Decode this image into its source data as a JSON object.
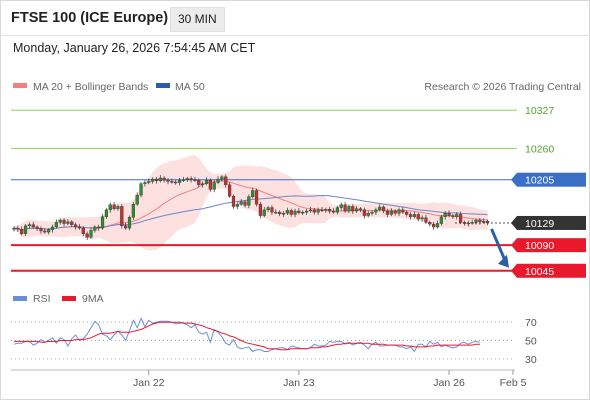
{
  "header": {
    "title": "FTSE 100 (ICE Europe)",
    "timeframe": "30 MIN",
    "timestamp": "Monday, January 26, 2026 7:54:45 AM CET"
  },
  "legend": {
    "ma20_label": "MA 20 + Bollinger Bands",
    "ma50_label": "MA 50",
    "credit": "Research © 2026 Trading Central"
  },
  "colors": {
    "ma20": "#f08080",
    "bands_fill": "#fde0e0",
    "ma50": "#6f86c8",
    "support": "#e8192c",
    "pivot_label": "#e8192c",
    "resistance_green": "#8fce5a",
    "resistance_blue": "#3a6fc6",
    "last_price_label": "#333333",
    "candle_up": "#2f8f2f",
    "candle_down": "#c43030",
    "rsi": "#6a8fd8",
    "rsi_ma": "#e8192c",
    "arrow": "#2b5ea7"
  },
  "chart_data": [
    {
      "type": "candlestick",
      "title": "",
      "ylim": [
        10020,
        10345
      ],
      "x_ticks": [
        "Jan 22",
        "Jan 23",
        "Jan 26",
        "Feb 5"
      ],
      "levels": [
        {
          "value": 10327,
          "label": "10327",
          "kind": "resistance"
        },
        {
          "value": 10260,
          "label": "10260",
          "kind": "resistance"
        },
        {
          "value": 10205,
          "label": "10205",
          "kind": "resistance"
        },
        {
          "value": 10129,
          "label": "10129",
          "kind": "last_price"
        },
        {
          "value": 10090,
          "label": "10090",
          "kind": "pivot"
        },
        {
          "value": 10045,
          "label": "10045",
          "kind": "support"
        }
      ],
      "close": [
        10120,
        10118,
        10110,
        10124,
        10126,
        10122,
        10119,
        10115,
        10113,
        10117,
        10122,
        10130,
        10134,
        10128,
        10131,
        10126,
        10122,
        10120,
        10110,
        10104,
        10116,
        10122,
        10120,
        10140,
        10152,
        10161,
        10154,
        10158,
        10124,
        10120,
        10139,
        10162,
        10178,
        10198,
        10200,
        10202,
        10206,
        10203,
        10208,
        10204,
        10202,
        10201,
        10200,
        10204,
        10205,
        10207,
        10205,
        10204,
        10196,
        10198,
        10204,
        10188,
        10200,
        10206,
        10210,
        10196,
        10176,
        10158,
        10162,
        10166,
        10160,
        10175,
        10186,
        10162,
        10142,
        10152,
        10156,
        10148,
        10148,
        10145,
        10146,
        10151,
        10144,
        10150,
        10147,
        10148,
        10150,
        10152,
        10148,
        10152,
        10151,
        10153,
        10150,
        10148,
        10156,
        10161,
        10150,
        10158,
        10150,
        10154,
        10152,
        10142,
        10146,
        10148,
        10152,
        10157,
        10150,
        10144,
        10150,
        10146,
        10152,
        10148,
        10144,
        10140,
        10144,
        10136,
        10138,
        10130,
        10127,
        10122,
        10128,
        10140,
        10146,
        10142,
        10140,
        10144,
        10130,
        10128,
        10129,
        10130,
        10134,
        10131,
        10132,
        10129
      ]
    },
    {
      "type": "line",
      "title": "",
      "ylim": [
        20,
        80
      ],
      "y_ticks": [
        "70",
        "50",
        "30"
      ],
      "series": [
        {
          "name": "RSI",
          "values": [
            46,
            47,
            47,
            49,
            49,
            45,
            47,
            51,
            48,
            50,
            53,
            47,
            53,
            51,
            44,
            52,
            56,
            50,
            52,
            57,
            64,
            71,
            67,
            57,
            55,
            51,
            56,
            60,
            56,
            50,
            61,
            72,
            64,
            74,
            65,
            72,
            69,
            70,
            71,
            71,
            71,
            70,
            68,
            69,
            69,
            67,
            64,
            67,
            59,
            57,
            59,
            48,
            62,
            59,
            54,
            47,
            45,
            51,
            43,
            41,
            42,
            43,
            38,
            40,
            40,
            38,
            38,
            40,
            41,
            42,
            42,
            40,
            44,
            43,
            42,
            41,
            41,
            42,
            46,
            44,
            44,
            45,
            49,
            48,
            49,
            49,
            46,
            48,
            45,
            47,
            48,
            45,
            41,
            46,
            48,
            44,
            44,
            45,
            45,
            45,
            43,
            43,
            41,
            43,
            38,
            46,
            46,
            43,
            49,
            46,
            48,
            43,
            45,
            43,
            42,
            43,
            47,
            48,
            46,
            48,
            49,
            48
          ]
        },
        {
          "name": "9MA",
          "values": [
            49,
            49,
            49,
            49,
            49,
            49,
            49,
            48,
            48,
            49,
            49,
            49,
            50,
            50,
            50,
            50,
            51,
            51,
            51,
            52,
            53,
            55,
            57,
            58,
            58,
            58,
            59,
            60,
            59,
            59,
            59,
            60,
            61,
            62,
            64,
            66,
            68,
            69,
            70,
            70,
            70,
            70,
            70,
            70,
            69,
            69,
            69,
            68,
            67,
            66,
            64,
            63,
            61,
            60,
            58,
            57,
            55,
            54,
            52,
            50,
            48,
            47,
            46,
            45,
            44,
            43,
            41,
            41,
            41,
            40,
            40,
            40,
            41,
            41,
            41,
            41,
            41,
            42,
            42,
            42,
            43,
            43,
            44,
            45,
            46,
            46,
            47,
            47,
            47,
            47,
            47,
            47,
            47,
            46,
            46,
            46,
            46,
            45,
            45,
            45,
            45,
            45,
            44,
            44,
            43,
            43,
            43,
            43,
            44,
            44,
            45,
            45,
            45,
            45,
            45,
            45,
            45,
            45,
            45,
            45,
            46,
            46
          ]
        }
      ]
    }
  ]
}
